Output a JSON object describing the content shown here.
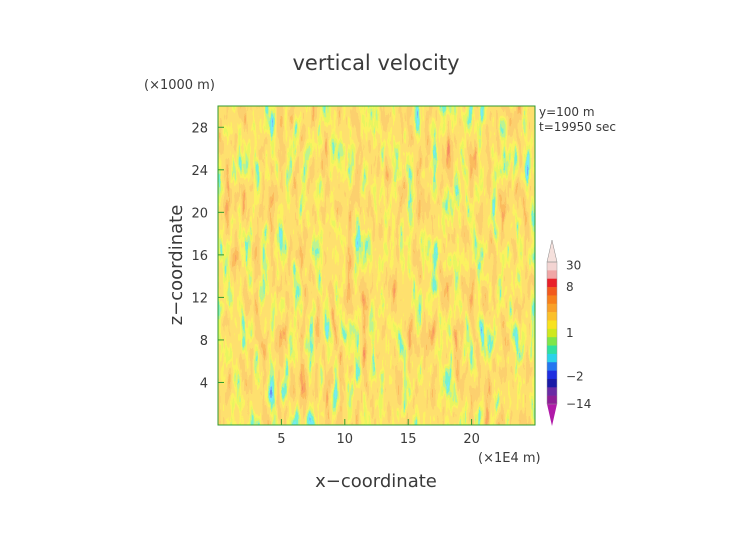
{
  "chart_data": {
    "type": "heatmap",
    "title": "vertical velocity",
    "xlabel": "x−coordinate",
    "ylabel": "z−coordinate",
    "x_unit": "(×1E4 m)",
    "y_unit": "(×1000 m)",
    "annotations": [
      "y=100 m",
      "t=19950 sec"
    ],
    "xlim": [
      0,
      25
    ],
    "ylim": [
      0,
      30
    ],
    "x_ticks": [
      5,
      10,
      15,
      20
    ],
    "y_ticks": [
      4,
      8,
      12,
      16,
      20,
      24,
      28
    ],
    "colorbar": {
      "tick_labels": [
        "30",
        "8",
        "1",
        "−2",
        "−14"
      ],
      "tick_values": [
        30,
        8,
        1,
        -2,
        -14
      ],
      "levels": [
        {
          "from": 30,
          "color": "#f3d4d2"
        },
        {
          "from": 16,
          "color": "#f0a6a6"
        },
        {
          "from": 8,
          "color": "#e8202a"
        },
        {
          "from": 6,
          "color": "#f25a1e"
        },
        {
          "from": 5,
          "color": "#f7801c"
        },
        {
          "from": 4,
          "color": "#f9a028"
        },
        {
          "from": 3,
          "color": "#fbc02a"
        },
        {
          "from": 2,
          "color": "#f8e21e"
        },
        {
          "from": 1,
          "color": "#cfe81e"
        },
        {
          "from": 0.5,
          "color": "#7ee64a"
        },
        {
          "from": 0,
          "color": "#2fe0a0"
        },
        {
          "from": -1,
          "color": "#2ad2ea"
        },
        {
          "from": -2,
          "color": "#2476f0"
        },
        {
          "from": -4,
          "color": "#1e2ee0"
        },
        {
          "from": -6,
          "color": "#1a1aa6"
        },
        {
          "from": -10,
          "color": "#6a2aa4"
        },
        {
          "from": -14,
          "color": "#8e1e96"
        }
      ],
      "over_color": "#f5e0dc",
      "under_color": "#b01aa8"
    }
  }
}
